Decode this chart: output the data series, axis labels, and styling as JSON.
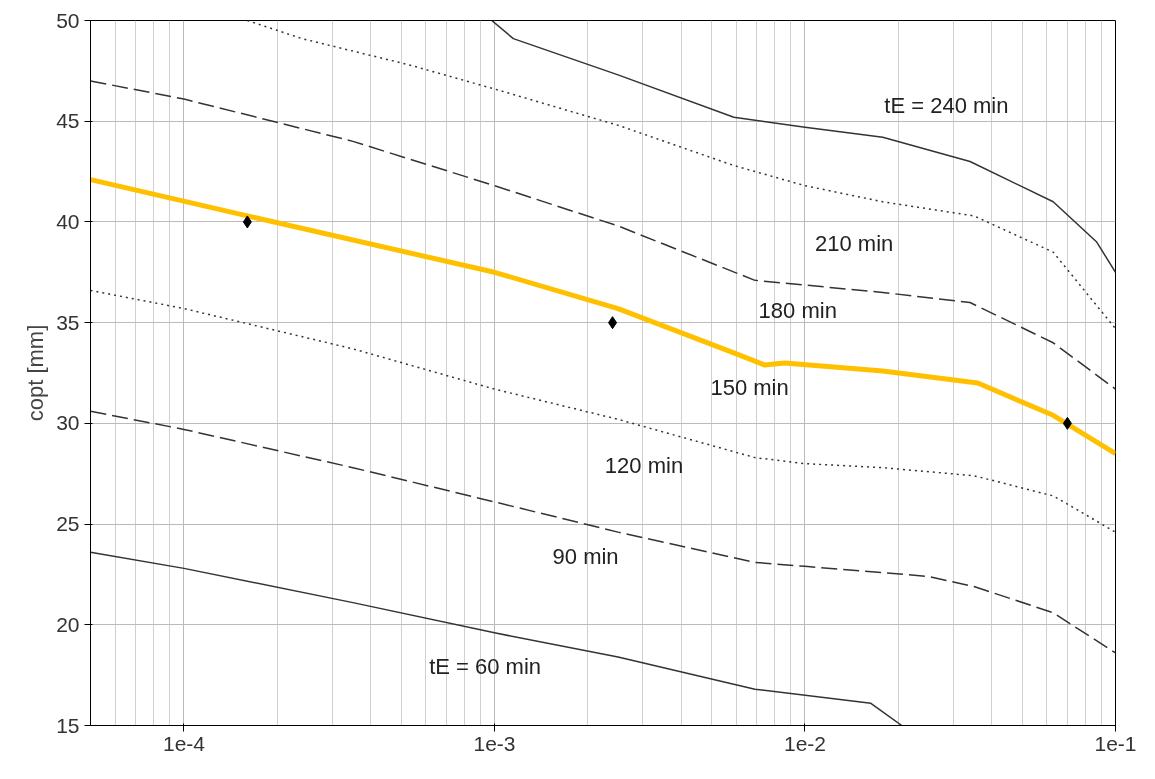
{
  "chart_data": {
    "type": "line",
    "ylabel": "copt [mm]",
    "log": "x",
    "grid": true,
    "xlim": [
      5e-05,
      0.1
    ],
    "ylim": [
      15,
      50
    ],
    "xticks": [
      {
        "value": 0.0001,
        "label": "1e-4"
      },
      {
        "value": 0.001,
        "label": "1e-3"
      },
      {
        "value": 0.01,
        "label": "1e-2"
      },
      {
        "value": 0.1,
        "label": "1e-1"
      }
    ],
    "yticks": [
      15,
      20,
      25,
      30,
      35,
      40,
      45,
      50
    ],
    "series": [
      {
        "color": "#333333",
        "line_style": "solid",
        "x": [
          0.00098,
          0.00115,
          0.0025,
          0.0059,
          0.01,
          0.0178,
          0.034,
          0.063,
          0.087,
          0.1
        ],
        "values": [
          50,
          49.1,
          47.3,
          45.2,
          44.7,
          44.2,
          43.0,
          41.0,
          39.0,
          37.5
        ]
      },
      {
        "color": "#333333",
        "line_style": "dotted",
        "x": [
          0.00016,
          0.00024,
          0.00053,
          0.001,
          0.0025,
          0.0059,
          0.01,
          0.0178,
          0.035,
          0.063,
          0.1
        ],
        "values": [
          50,
          49.1,
          47.8,
          46.6,
          44.8,
          42.8,
          41.8,
          41.0,
          40.3,
          38.5,
          34.7
        ]
      },
      {
        "color": "#333333",
        "line_style": "dashed",
        "x": [
          5e-05,
          0.0001,
          0.00035,
          0.001,
          0.0025,
          0.0069,
          0.0178,
          0.034,
          0.063,
          0.1
        ],
        "values": [
          47.0,
          46.1,
          44.0,
          41.8,
          39.8,
          37.1,
          36.5,
          36.0,
          34.0,
          31.7
        ]
      },
      {
        "color": "#333333",
        "line_style": "dotted",
        "x": [
          5e-05,
          0.0001,
          0.00035,
          0.001,
          0.0025,
          0.0069,
          0.01,
          0.0178,
          0.035,
          0.063,
          0.1
        ],
        "values": [
          36.6,
          35.7,
          33.7,
          31.7,
          30.2,
          28.3,
          28.0,
          27.8,
          27.4,
          26.4,
          24.6
        ]
      },
      {
        "color": "#333333",
        "line_style": "dashed",
        "x": [
          5e-05,
          0.0001,
          0.00035,
          0.001,
          0.0025,
          0.0069,
          0.01,
          0.025,
          0.035,
          0.063,
          0.1
        ],
        "values": [
          30.6,
          29.7,
          27.8,
          26.1,
          24.6,
          23.1,
          22.9,
          22.4,
          21.9,
          20.6,
          18.6
        ]
      },
      {
        "color": "#333333",
        "line_style": "solid",
        "x": [
          5e-05,
          0.0001,
          0.00035,
          0.001,
          0.0025,
          0.0069,
          0.0163,
          0.0205
        ],
        "values": [
          23.6,
          22.8,
          21.1,
          19.6,
          18.4,
          16.8,
          16.1,
          15.0
        ]
      },
      {
        "color": "#ffc000",
        "line_style": "solid",
        "x": [
          5e-05,
          0.00016,
          0.001,
          0.0025,
          0.0059,
          0.0074,
          0.0086,
          0.0178,
          0.036,
          0.063,
          0.1
        ],
        "values": [
          42.1,
          40.3,
          37.5,
          35.7,
          33.5,
          32.9,
          33.0,
          32.6,
          32.0,
          30.4,
          28.5
        ]
      },
      {
        "type": "scatter",
        "marker": "diamond",
        "color": "#000000",
        "x": [
          0.00016,
          0.0024,
          0.07
        ],
        "values": [
          40,
          35,
          30
        ]
      }
    ],
    "annotations": [
      "tE = 240 min",
      "210 min",
      "180 min",
      "150 min",
      "120 min",
      "90 min",
      "tE = 60 min"
    ]
  }
}
